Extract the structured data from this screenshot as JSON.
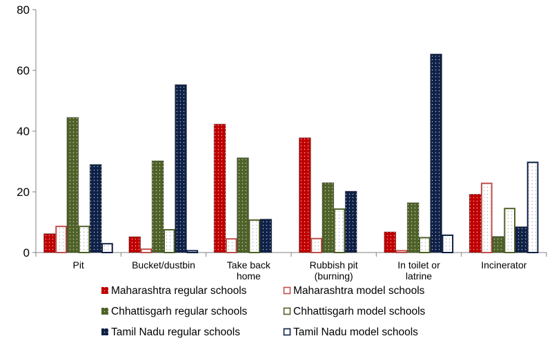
{
  "chart_data": {
    "type": "bar",
    "categories": [
      [
        "Pit"
      ],
      [
        "Bucket/dustbin"
      ],
      [
        "Take back",
        "home"
      ],
      [
        "Rubbish pit",
        "(burning)"
      ],
      [
        "In toilet or",
        "latrine"
      ],
      [
        "Incinerator"
      ]
    ],
    "series": [
      {
        "name": "Maharashtra regular schools",
        "values": [
          6.2,
          5.2,
          42.3,
          37.8,
          6.8,
          19.2
        ],
        "color": "#c00000",
        "fill": "solid"
      },
      {
        "name": "Maharashtra model schools",
        "values": [
          8.6,
          1.1,
          4.5,
          4.6,
          0.6,
          22.8
        ],
        "color": "#c0504d",
        "fill": "outline"
      },
      {
        "name": "Chhattisgarh regular schools",
        "values": [
          44.5,
          30.2,
          31.2,
          23.0,
          16.4,
          5.3
        ],
        "color": "#4f6228",
        "fill": "solid"
      },
      {
        "name": "Chhattisgarh model schools",
        "values": [
          8.6,
          7.5,
          10.7,
          14.3,
          4.9,
          14.5
        ],
        "color": "#4f6228",
        "fill": "outline"
      },
      {
        "name": "Tamil Nadu regular schools",
        "values": [
          29.0,
          55.3,
          11.0,
          20.2,
          65.4,
          8.5
        ],
        "color": "#0f2147",
        "fill": "solid"
      },
      {
        "name": "Tamil Nadu  model schools",
        "values": [
          2.9,
          0.6,
          0.0,
          0.0,
          5.7,
          29.7
        ],
        "color": "#0f2147",
        "fill": "outline"
      }
    ],
    "ylim": [
      0,
      80
    ],
    "yticks": [
      "0",
      "20",
      "40",
      "60",
      "80"
    ],
    "grid": false,
    "legend_position": "bottom"
  }
}
